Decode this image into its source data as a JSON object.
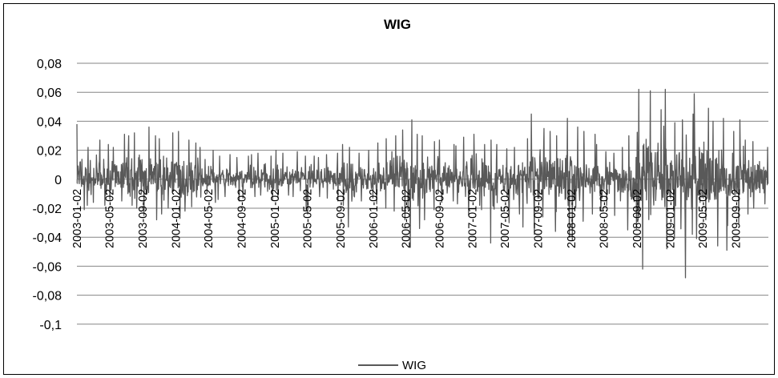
{
  "chart_data": {
    "type": "line",
    "title": "WIG",
    "xlabel": "",
    "ylabel": "",
    "ylim": [
      -0.1,
      0.08
    ],
    "y_ticks": [
      -0.1,
      -0.08,
      -0.06,
      -0.04,
      -0.02,
      0,
      0.02,
      0.04,
      0.06,
      0.08
    ],
    "y_tick_labels": [
      "-0,1",
      "-0,08",
      "-0,06",
      "-0,04",
      "-0,02",
      "0",
      "0,02",
      "0,04",
      "0,06",
      "0,08"
    ],
    "x_range": [
      "2003-01-02",
      "2009-12-31"
    ],
    "x_tick_labels": [
      "2003-01-02",
      "2003-05-02",
      "2003-09-02",
      "2004-01-02",
      "2004-05-02",
      "2004-09-02",
      "2005-01-02",
      "2005-05-02",
      "2005-09-02",
      "2006-01-02",
      "2006-05-02",
      "2006-09-02",
      "2007-01-02",
      "2007-05-02",
      "2007-09-02",
      "2008-01-02",
      "2008-05-02",
      "2008-09-02",
      "2009-01-02",
      "2009-05-02",
      "2009-09-02"
    ],
    "grid": "horizontal",
    "legend_position": "bottom",
    "colors": {
      "series": "#595959",
      "grid": "#868686",
      "axis": "#868686"
    },
    "series": [
      {
        "name": "WIG",
        "x": [
          "2003-01-02",
          "2003-02-01",
          "2003-03-01",
          "2003-04-01",
          "2003-05-01",
          "2003-06-01",
          "2003-07-01",
          "2003-08-01",
          "2003-09-01",
          "2003-10-01",
          "2003-11-01",
          "2003-12-01",
          "2004-01-01",
          "2004-02-01",
          "2004-03-01",
          "2004-04-01",
          "2004-05-01",
          "2004-06-01",
          "2004-07-01",
          "2004-08-01",
          "2004-09-01",
          "2004-10-01",
          "2004-11-01",
          "2004-12-01",
          "2005-01-01",
          "2005-02-01",
          "2005-03-01",
          "2005-04-01",
          "2005-05-01",
          "2005-06-01",
          "2005-07-01",
          "2005-08-01",
          "2005-09-01",
          "2005-10-01",
          "2005-11-01",
          "2005-12-01",
          "2006-01-01",
          "2006-02-01",
          "2006-03-01",
          "2006-04-01",
          "2006-05-01",
          "2006-06-01",
          "2006-07-01",
          "2006-08-01",
          "2006-09-01",
          "2006-10-01",
          "2006-11-01",
          "2006-12-01",
          "2007-01-01",
          "2007-02-01",
          "2007-03-01",
          "2007-04-01",
          "2007-05-01",
          "2007-06-01",
          "2007-07-01",
          "2007-08-01",
          "2007-09-01",
          "2007-10-01",
          "2007-11-01",
          "2007-12-01",
          "2008-01-01",
          "2008-02-01",
          "2008-03-01",
          "2008-04-01",
          "2008-05-01",
          "2008-06-01",
          "2008-07-01",
          "2008-08-01",
          "2008-09-01",
          "2008-10-01",
          "2008-11-01",
          "2008-12-01",
          "2009-01-01",
          "2009-02-01",
          "2009-03-01",
          "2009-04-01",
          "2009-05-01",
          "2009-06-01",
          "2009-07-01",
          "2009-08-01",
          "2009-09-01",
          "2009-10-01",
          "2009-11-01",
          "2009-12-01"
        ],
        "max": [
          0.038,
          0.022,
          0.027,
          0.024,
          0.022,
          0.031,
          0.03,
          0.032,
          0.036,
          0.03,
          0.028,
          0.032,
          0.033,
          0.027,
          0.025,
          0.022,
          0.02,
          0.016,
          0.017,
          0.015,
          0.016,
          0.017,
          0.018,
          0.016,
          0.02,
          0.018,
          0.019,
          0.016,
          0.016,
          0.015,
          0.017,
          0.018,
          0.024,
          0.022,
          0.018,
          0.02,
          0.025,
          0.028,
          0.03,
          0.034,
          0.041,
          0.031,
          0.03,
          0.026,
          0.027,
          0.024,
          0.023,
          0.029,
          0.031,
          0.024,
          0.027,
          0.024,
          0.021,
          0.022,
          0.028,
          0.045,
          0.035,
          0.033,
          0.03,
          0.042,
          0.036,
          0.033,
          0.031,
          0.024,
          0.019,
          0.018,
          0.022,
          0.03,
          0.062,
          0.061,
          0.048,
          0.062,
          0.039,
          0.041,
          0.045,
          0.059,
          0.049,
          0.04,
          0.042,
          0.033,
          0.041,
          0.027,
          0.026,
          0.022
        ],
        "min": [
          -0.021,
          -0.018,
          -0.016,
          -0.018,
          -0.014,
          -0.015,
          -0.018,
          -0.02,
          -0.025,
          -0.028,
          -0.024,
          -0.02,
          -0.027,
          -0.022,
          -0.019,
          -0.02,
          -0.016,
          -0.014,
          -0.012,
          -0.015,
          -0.013,
          -0.012,
          -0.011,
          -0.014,
          -0.013,
          -0.011,
          -0.012,
          -0.021,
          -0.024,
          -0.012,
          -0.013,
          -0.015,
          -0.018,
          -0.033,
          -0.015,
          -0.013,
          -0.017,
          -0.02,
          -0.022,
          -0.028,
          -0.047,
          -0.034,
          -0.028,
          -0.021,
          -0.016,
          -0.015,
          -0.017,
          -0.025,
          -0.018,
          -0.021,
          -0.044,
          -0.026,
          -0.03,
          -0.024,
          -0.033,
          -0.038,
          -0.026,
          -0.023,
          -0.036,
          -0.04,
          -0.042,
          -0.029,
          -0.024,
          -0.022,
          -0.018,
          -0.025,
          -0.035,
          -0.034,
          -0.062,
          -0.08,
          -0.052,
          -0.048,
          -0.041,
          -0.068,
          -0.038,
          -0.041,
          -0.028,
          -0.046,
          -0.049,
          -0.032,
          -0.031,
          -0.024,
          -0.02,
          -0.017
        ]
      }
    ]
  }
}
